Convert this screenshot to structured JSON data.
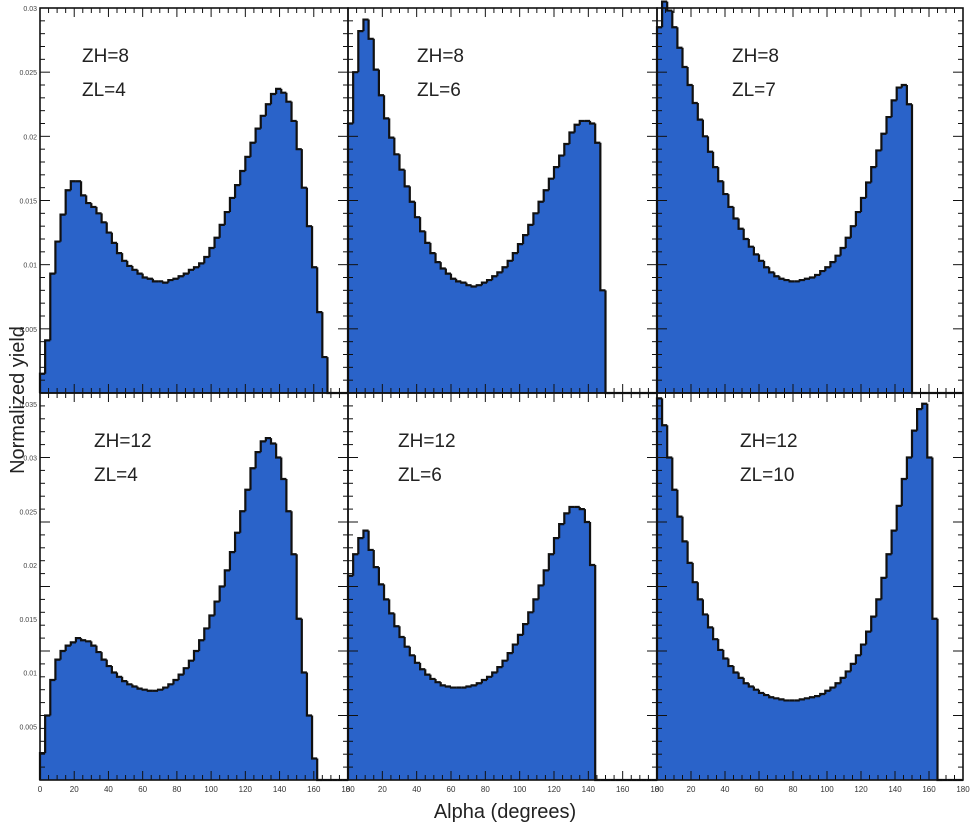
{
  "figure": {
    "xlabel": "Alpha (degrees)",
    "ylabel": "Normalized yield"
  },
  "colors": {
    "fill": "#2a63c9",
    "outline": "#111111"
  },
  "chart_data": [
    {
      "type": "histogram",
      "annotation": [
        "ZH=8",
        "ZL=4"
      ],
      "xlim": [
        0,
        180
      ],
      "ylim": [
        0,
        0.03
      ],
      "bin_width": 3,
      "y_ticks": [
        "0.005",
        "0.01",
        "0.015",
        "0.02",
        "0.025",
        "0.03"
      ],
      "x_ticks": [
        "0",
        "20",
        "40",
        "60",
        "80",
        "100",
        "120",
        "140",
        "160",
        "180"
      ],
      "values": [
        0.0015,
        0.0041,
        0.0093,
        0.0118,
        0.0139,
        0.0158,
        0.0165,
        0.0165,
        0.0154,
        0.0148,
        0.0145,
        0.014,
        0.0133,
        0.0125,
        0.0117,
        0.0109,
        0.0103,
        0.0099,
        0.0096,
        0.0093,
        0.009,
        0.0089,
        0.0087,
        0.0087,
        0.0086,
        0.0088,
        0.0089,
        0.0091,
        0.0093,
        0.0096,
        0.0098,
        0.0101,
        0.0106,
        0.0113,
        0.0121,
        0.0131,
        0.0141,
        0.0152,
        0.0162,
        0.0173,
        0.0184,
        0.0195,
        0.0206,
        0.0216,
        0.0225,
        0.0233,
        0.0237,
        0.0234,
        0.0227,
        0.0212,
        0.019,
        0.016,
        0.013,
        0.0098,
        0.0063,
        0.0028,
        0,
        0,
        0,
        0
      ]
    },
    {
      "type": "histogram",
      "annotation": [
        "ZH=8",
        "ZL=6"
      ],
      "xlim": [
        0,
        180
      ],
      "ylim": [
        0,
        0.03
      ],
      "bin_width": 3,
      "x_ticks": [
        "0",
        "20",
        "40",
        "60",
        "80",
        "100",
        "120",
        "140",
        "160",
        "180"
      ],
      "values": [
        0.021,
        0.025,
        0.0282,
        0.0291,
        0.0276,
        0.0252,
        0.0232,
        0.0214,
        0.0199,
        0.0186,
        0.0174,
        0.0161,
        0.0149,
        0.0137,
        0.0126,
        0.0117,
        0.0109,
        0.0102,
        0.0097,
        0.0093,
        0.0089,
        0.0087,
        0.0086,
        0.0084,
        0.0083,
        0.0084,
        0.0086,
        0.0088,
        0.0091,
        0.0094,
        0.0098,
        0.0103,
        0.0109,
        0.0116,
        0.0123,
        0.0131,
        0.014,
        0.0149,
        0.0158,
        0.0167,
        0.0176,
        0.0185,
        0.0194,
        0.0203,
        0.0209,
        0.0212,
        0.0212,
        0.021,
        0.0195,
        0.008,
        0,
        0,
        0,
        0,
        0,
        0,
        0,
        0,
        0,
        0
      ]
    },
    {
      "type": "histogram",
      "annotation": [
        "ZH=8",
        "ZL=7"
      ],
      "xlim": [
        0,
        180
      ],
      "ylim": [
        0,
        0.03
      ],
      "bin_width": 3,
      "x_ticks": [
        "0",
        "20",
        "40",
        "60",
        "80",
        "100",
        "120",
        "140",
        "160",
        "180"
      ],
      "values": [
        0.0285,
        0.0305,
        0.0298,
        0.0285,
        0.0269,
        0.0254,
        0.024,
        0.0226,
        0.0213,
        0.02,
        0.0188,
        0.0176,
        0.0165,
        0.0155,
        0.0145,
        0.0136,
        0.0128,
        0.012,
        0.0114,
        0.0108,
        0.0103,
        0.0098,
        0.0094,
        0.0091,
        0.0089,
        0.0088,
        0.0087,
        0.0087,
        0.0088,
        0.0089,
        0.009,
        0.0092,
        0.0095,
        0.0098,
        0.0102,
        0.0107,
        0.0113,
        0.0121,
        0.013,
        0.0141,
        0.0152,
        0.0164,
        0.0176,
        0.0189,
        0.0202,
        0.0215,
        0.0228,
        0.0238,
        0.024,
        0.0225,
        0,
        0,
        0,
        0,
        0,
        0,
        0,
        0,
        0,
        0
      ]
    },
    {
      "type": "histogram",
      "annotation": [
        "ZH=12",
        "ZL=4"
      ],
      "xlim": [
        0,
        180
      ],
      "ylim": [
        0,
        0.036
      ],
      "bin_width": 3,
      "y_ticks": [
        "0.005",
        "0.01",
        "0.015",
        "0.02",
        "0.025",
        "0.03",
        "0.035"
      ],
      "x_ticks": [
        "0",
        "20",
        "40",
        "60",
        "80",
        "100",
        "120",
        "140",
        "160",
        "180"
      ],
      "values": [
        0.0025,
        0.006,
        0.0093,
        0.0112,
        0.012,
        0.0125,
        0.0128,
        0.0132,
        0.013,
        0.0129,
        0.0125,
        0.0119,
        0.0112,
        0.0106,
        0.01,
        0.0096,
        0.0092,
        0.0089,
        0.0087,
        0.0085,
        0.0084,
        0.0083,
        0.0083,
        0.0084,
        0.0086,
        0.0089,
        0.0093,
        0.0098,
        0.0104,
        0.0111,
        0.012,
        0.013,
        0.0141,
        0.0153,
        0.0166,
        0.018,
        0.0195,
        0.0212,
        0.023,
        0.025,
        0.027,
        0.029,
        0.0305,
        0.0315,
        0.0318,
        0.0313,
        0.03,
        0.028,
        0.025,
        0.021,
        0.015,
        0.01,
        0.006,
        0.002,
        0,
        0,
        0,
        0,
        0,
        0
      ]
    },
    {
      "type": "histogram",
      "annotation": [
        "ZH=12",
        "ZL=6"
      ],
      "xlim": [
        0,
        180
      ],
      "ylim": [
        0,
        0.036
      ],
      "bin_width": 3,
      "x_ticks": [
        "0",
        "20",
        "40",
        "60",
        "80",
        "100",
        "120",
        "140",
        "160",
        "180"
      ],
      "values": [
        0.019,
        0.021,
        0.0225,
        0.0232,
        0.0214,
        0.0198,
        0.0182,
        0.0168,
        0.0155,
        0.0143,
        0.0133,
        0.0124,
        0.0116,
        0.0109,
        0.0103,
        0.0098,
        0.0094,
        0.0091,
        0.0088,
        0.0087,
        0.0086,
        0.0086,
        0.0086,
        0.0087,
        0.0088,
        0.009,
        0.0093,
        0.0096,
        0.01,
        0.0105,
        0.0111,
        0.0118,
        0.0126,
        0.0135,
        0.0145,
        0.0156,
        0.0168,
        0.0181,
        0.0195,
        0.021,
        0.0225,
        0.0238,
        0.0248,
        0.0254,
        0.0254,
        0.0252,
        0.024,
        0.02,
        0,
        0,
        0,
        0,
        0,
        0,
        0,
        0,
        0,
        0,
        0,
        0
      ]
    },
    {
      "type": "histogram",
      "annotation": [
        "ZH=12",
        "ZL=10"
      ],
      "xlim": [
        0,
        180
      ],
      "ylim": [
        0,
        0.036
      ],
      "bin_width": 3,
      "x_ticks": [
        "0",
        "20",
        "40",
        "60",
        "80",
        "100",
        "120",
        "140",
        "160",
        "180"
      ],
      "values": [
        0.0355,
        0.033,
        0.03,
        0.027,
        0.0245,
        0.0222,
        0.0202,
        0.0184,
        0.0168,
        0.0154,
        0.0142,
        0.0131,
        0.0121,
        0.0113,
        0.0106,
        0.01,
        0.0095,
        0.009,
        0.0087,
        0.0084,
        0.0081,
        0.0079,
        0.0077,
        0.0076,
        0.0075,
        0.0074,
        0.0074,
        0.0074,
        0.0075,
        0.0076,
        0.0077,
        0.0078,
        0.008,
        0.0083,
        0.0086,
        0.009,
        0.0095,
        0.0101,
        0.0108,
        0.0116,
        0.0126,
        0.0138,
        0.0152,
        0.0168,
        0.0188,
        0.021,
        0.0232,
        0.0255,
        0.028,
        0.03,
        0.0325,
        0.0345,
        0.035,
        0.03,
        0.015,
        0,
        0,
        0,
        0,
        0
      ]
    }
  ]
}
